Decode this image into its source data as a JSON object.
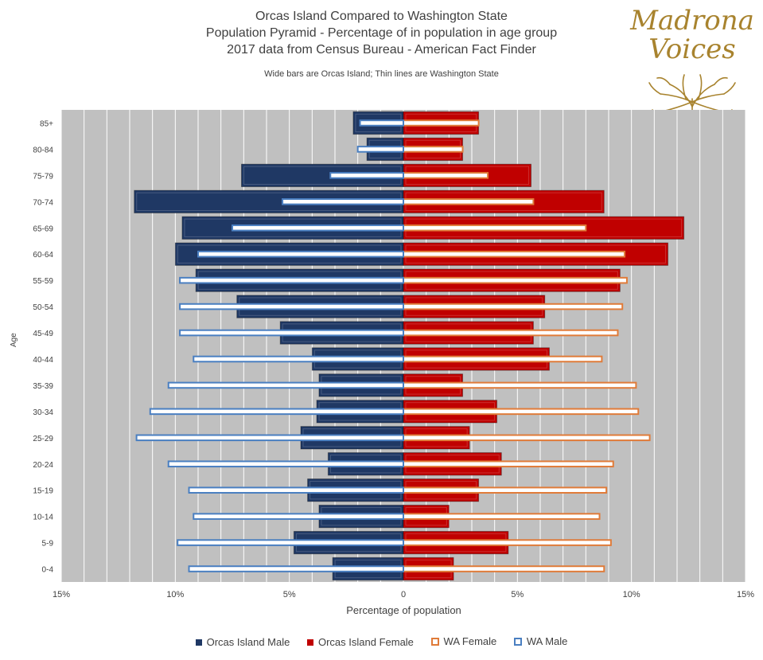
{
  "titles": {
    "line1": "Orcas Island Compared to Washington State",
    "line2": "Population Pyramid - Percentage of in population in age group",
    "line3": "2017 data from Census Bureau - American Fact Finder",
    "subtitle": "Wide bars are Orcas Island; Thin lines are Washington State"
  },
  "logo": {
    "line1": "Madrona",
    "line2": "Voices"
  },
  "colors": {
    "orcas_male": "#1f3864",
    "orcas_female": "#c00000",
    "wa_female": "#e07b39",
    "wa_male": "#4a7fc1",
    "plot_bg": "#c0c0c0",
    "gridline": "#ffffff"
  },
  "chart_data": {
    "type": "bar",
    "orientation": "horizontal",
    "categories": [
      "0-4",
      "5-9",
      "10-14",
      "15-19",
      "20-24",
      "25-29",
      "30-34",
      "35-39",
      "40-44",
      "45-49",
      "50-54",
      "55-59",
      "60-64",
      "65-69",
      "70-74",
      "75-79",
      "80-84",
      "85+"
    ],
    "series": [
      {
        "name": "Orcas Island Male",
        "side": "left",
        "values": [
          3.1,
          4.8,
          3.7,
          4.2,
          3.3,
          4.5,
          3.8,
          3.7,
          4.0,
          5.4,
          7.3,
          9.1,
          10.0,
          9.7,
          11.8,
          7.1,
          1.6,
          2.2
        ]
      },
      {
        "name": "Orcas Island Female",
        "side": "right",
        "values": [
          2.2,
          4.6,
          2.0,
          3.3,
          4.3,
          2.9,
          4.1,
          2.6,
          6.4,
          5.7,
          6.2,
          9.5,
          11.6,
          12.3,
          8.8,
          5.6,
          2.6,
          3.3
        ]
      },
      {
        "name": "WA Female",
        "side": "right",
        "values": [
          8.8,
          9.1,
          8.6,
          8.9,
          9.2,
          10.8,
          10.3,
          10.2,
          8.7,
          9.4,
          9.6,
          9.8,
          9.7,
          8.0,
          5.7,
          3.7,
          2.6,
          3.3
        ]
      },
      {
        "name": "WA Male",
        "side": "left",
        "values": [
          9.4,
          9.9,
          9.2,
          9.4,
          10.3,
          11.7,
          11.1,
          10.3,
          9.2,
          9.8,
          9.8,
          9.8,
          9.0,
          7.5,
          5.3,
          3.2,
          2.0,
          1.9
        ]
      }
    ],
    "xlabel": "Percentage of population",
    "ylabel": "Age",
    "xlim": [
      -15,
      15
    ],
    "xticks": [
      "15%",
      "10%",
      "5%",
      "0",
      "5%",
      "10%",
      "15%"
    ],
    "grid": true,
    "legend_position": "bottom"
  }
}
